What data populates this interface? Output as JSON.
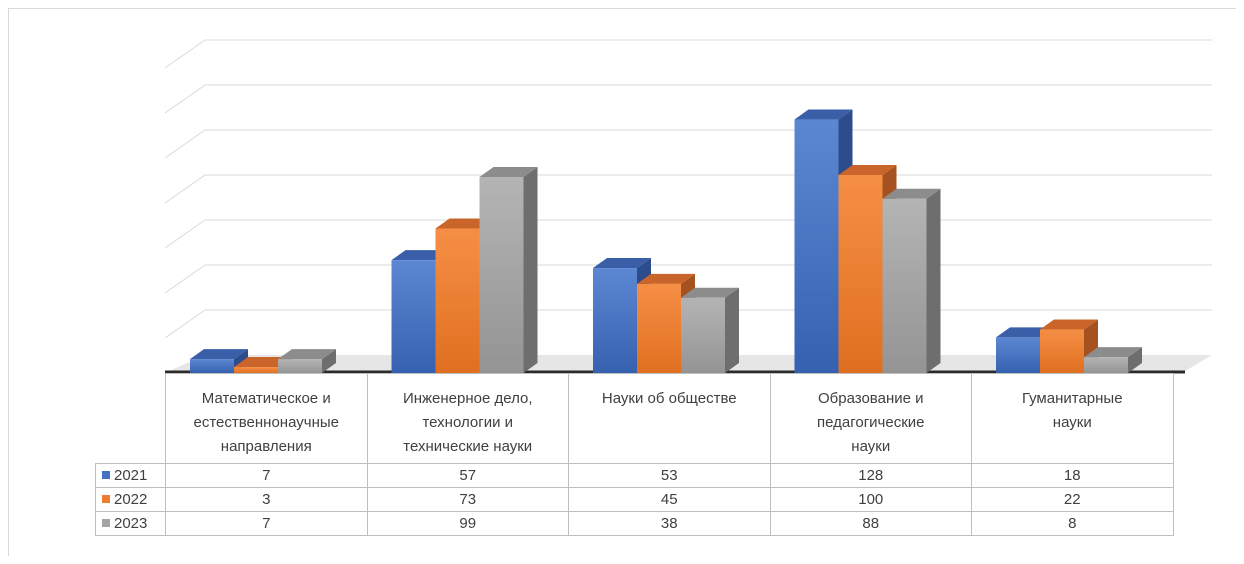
{
  "chart_data": {
    "type": "bar",
    "title": "",
    "xlabel": "",
    "ylabel": "",
    "ylim": [
      0,
      140
    ],
    "grid": true,
    "legend_placement": "table-left",
    "categories": [
      "Математическое и естественнонаучные направления",
      "Инженерное дело, технологии и технические науки",
      "Науки об обществе",
      "Образование и педагогические науки",
      "Гуманитарные науки"
    ],
    "category_lines": [
      [
        "Математическое и",
        "естественнонаучные",
        "направления"
      ],
      [
        "Инженерное дело,",
        "технологии и",
        "технические науки"
      ],
      [
        "Науки об обществе"
      ],
      [
        "Образование и",
        "педагогические",
        "науки"
      ],
      [
        "Гуманитарные",
        "науки"
      ]
    ],
    "series": [
      {
        "name": "2021",
        "color": "#4472C4",
        "values": [
          7,
          57,
          53,
          128,
          18
        ]
      },
      {
        "name": "2022",
        "color": "#ED7D31",
        "values": [
          3,
          73,
          45,
          100,
          22
        ]
      },
      {
        "name": "2023",
        "color": "#A5A5A5",
        "values": [
          7,
          99,
          38,
          88,
          8
        ]
      }
    ]
  }
}
